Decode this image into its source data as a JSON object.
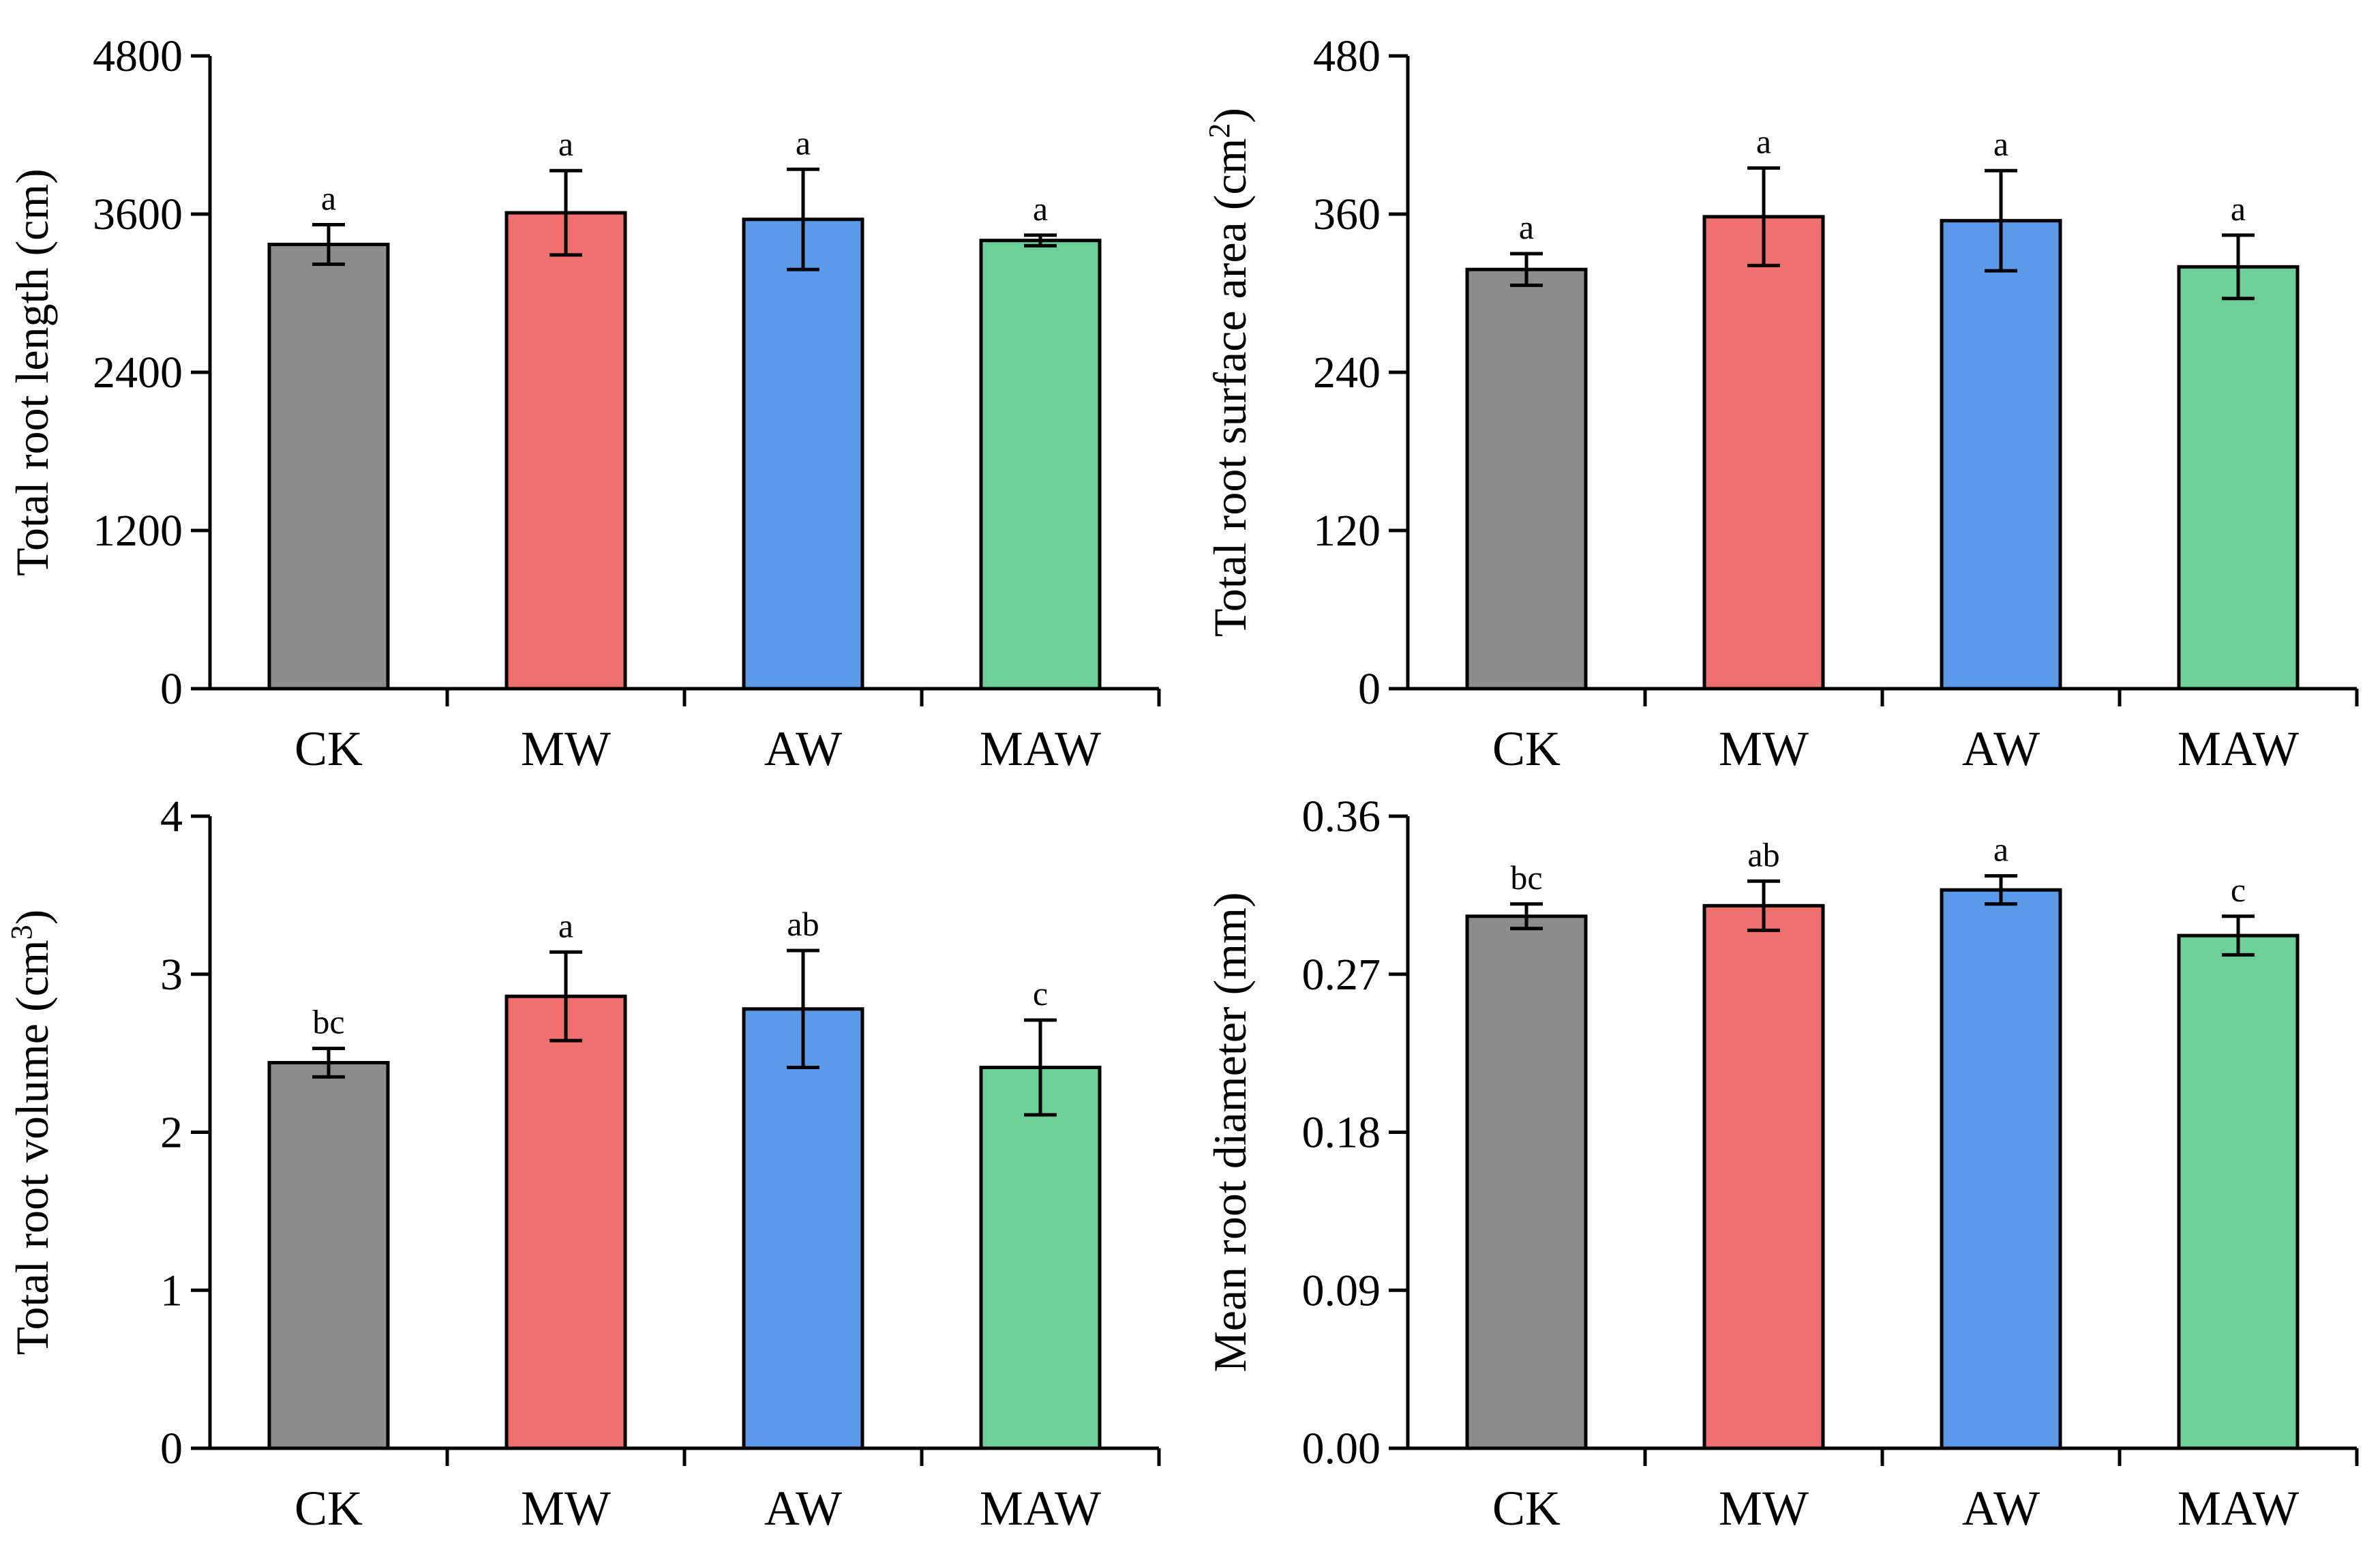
{
  "chart_data": [
    {
      "type": "bar",
      "categories": [
        "CK",
        "MW",
        "AW",
        "MAW"
      ],
      "values": [
        3370,
        3610,
        3560,
        3400
      ],
      "errors": [
        150,
        320,
        380,
        40
      ],
      "significance": [
        "a",
        "a",
        "a",
        "a"
      ],
      "colors": [
        "#8c8c8c",
        "#f07070",
        "#5b9ae8",
        "#6dcf98"
      ],
      "ylabel": "Total root length (cm)",
      "ylabel_sup": "",
      "ylabel_tail": "",
      "ylim": [
        0,
        4800
      ],
      "yticks": [
        "0",
        "1200",
        "2400",
        "3600",
        "4800"
      ],
      "xlabel": ""
    },
    {
      "type": "bar",
      "categories": [
        "CK",
        "MW",
        "AW",
        "MAW"
      ],
      "values": [
        318,
        358,
        355,
        320
      ],
      "errors": [
        12,
        37,
        38,
        24
      ],
      "significance": [
        "a",
        "a",
        "a",
        "a"
      ],
      "colors": [
        "#8c8c8c",
        "#f07070",
        "#5b9ae8",
        "#6dcf98"
      ],
      "ylabel": "Total root surface area (cm",
      "ylabel_sup": "2",
      "ylabel_tail": ")",
      "ylim": [
        0,
        480
      ],
      "yticks": [
        "0",
        "120",
        "240",
        "360",
        "480"
      ],
      "xlabel": ""
    },
    {
      "type": "bar",
      "categories": [
        "CK",
        "MW",
        "AW",
        "MAW"
      ],
      "values": [
        2.44,
        2.86,
        2.78,
        2.41
      ],
      "errors": [
        0.09,
        0.28,
        0.37,
        0.3
      ],
      "significance": [
        "bc",
        "a",
        "ab",
        "c"
      ],
      "colors": [
        "#8c8c8c",
        "#f07070",
        "#5b9ae8",
        "#6dcf98"
      ],
      "ylabel": "Total root volume (cm",
      "ylabel_sup": "3",
      "ylabel_tail": ")",
      "ylim": [
        0,
        4
      ],
      "yticks": [
        "0",
        "1",
        "2",
        "3",
        "4"
      ],
      "xlabel": ""
    },
    {
      "type": "bar",
      "categories": [
        "CK",
        "MW",
        "AW",
        "MAW"
      ],
      "values": [
        0.303,
        0.309,
        0.318,
        0.292
      ],
      "errors": [
        0.007,
        0.014,
        0.008,
        0.011
      ],
      "significance": [
        "bc",
        "ab",
        "a",
        "c"
      ],
      "colors": [
        "#8c8c8c",
        "#f07070",
        "#5b9ae8",
        "#6dcf98"
      ],
      "ylabel": "Mean root diameter (mm)",
      "ylabel_sup": "",
      "ylabel_tail": "",
      "ylim": [
        0,
        0.36
      ],
      "yticks": [
        "0.00",
        "0.09",
        "0.18",
        "0.27",
        "0.36"
      ],
      "xlabel": ""
    }
  ]
}
